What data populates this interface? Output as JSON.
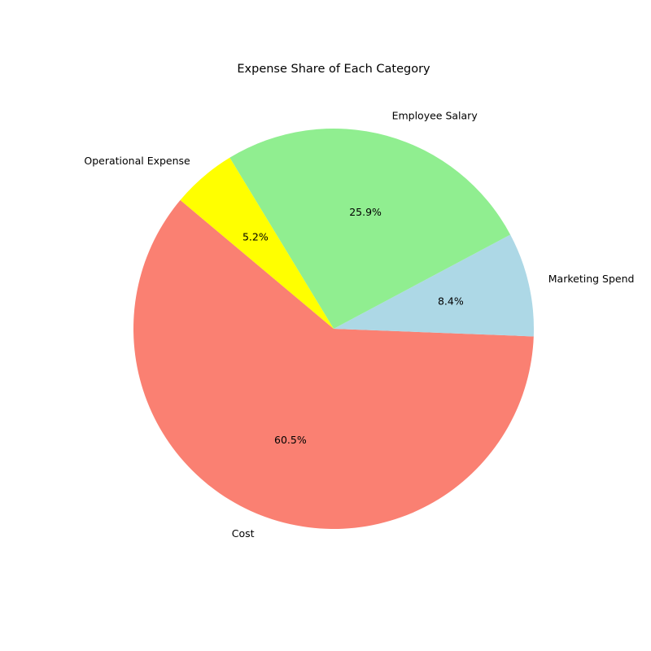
{
  "chart_data": {
    "type": "pie",
    "title": "Expense Share of Each Category",
    "start_angle_deg": 140,
    "direction": "counterclockwise",
    "slices": [
      {
        "label": "Cost",
        "value": 60.5,
        "pct_label": "60.5%",
        "color": "#fa8072"
      },
      {
        "label": "Marketing Spend",
        "value": 8.4,
        "pct_label": "8.4%",
        "color": "#add8e6"
      },
      {
        "label": "Employee Salary",
        "value": 25.9,
        "pct_label": "25.9%",
        "color": "#90ee90"
      },
      {
        "label": "Operational Expense",
        "value": 5.2,
        "pct_label": "5.2%",
        "color": "#ffff00"
      }
    ]
  }
}
